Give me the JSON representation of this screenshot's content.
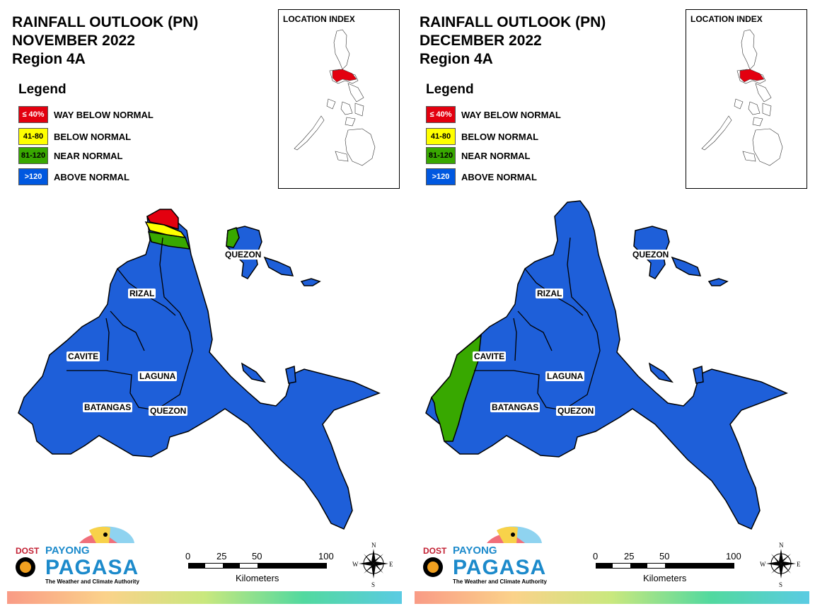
{
  "panels": [
    {
      "title_lines": [
        "RAINFALL OUTLOOK (PN)",
        "NOVEMBER 2022",
        "Region 4A"
      ],
      "legend": {
        "title": "Legend",
        "items": [
          {
            "code": "≤ 40%",
            "label": "WAY BELOW NORMAL",
            "color": "#e3000f",
            "text_color": "#ffffff"
          },
          {
            "code": "41-80",
            "label": "BELOW NORMAL",
            "color": "#ffff00",
            "text_color": "#000000"
          },
          {
            "code": "81-120",
            "label": "NEAR NORMAL",
            "color": "#38a800",
            "text_color": "#000000"
          },
          {
            "code": ">120",
            "label": "ABOVE NORMAL",
            "color": "#0058e0",
            "text_color": "#ffffff"
          }
        ]
      },
      "location_index": {
        "title": "LOCATION INDEX"
      },
      "provinces": [
        "RIZAL",
        "CAVITE",
        "LAGUNA",
        "BATANGAS",
        "QUEZON",
        "QUEZON"
      ],
      "special_zones": [
        "rizal-north-tip-way-below-normal",
        "rizal-north-tip-below-normal",
        "rizal-north-tip-near-normal",
        "polillo-near-normal"
      ],
      "scale": {
        "ticks": [
          "0",
          "25",
          "50",
          "100"
        ],
        "unit": "Kilometers"
      },
      "compass": {
        "n": "N",
        "s": "S",
        "e": "E",
        "w": "W"
      },
      "logo": {
        "dost": "DOST",
        "payong": "PAYONG",
        "pagasa": "PAGASA",
        "tagline": "The Weather and Climate Authority"
      }
    },
    {
      "title_lines": [
        "RAINFALL OUTLOOK (PN)",
        "DECEMBER 2022",
        "Region 4A"
      ],
      "legend": {
        "title": "Legend",
        "items": [
          {
            "code": "≤ 40%",
            "label": "WAY BELOW NORMAL",
            "color": "#e3000f",
            "text_color": "#ffffff"
          },
          {
            "code": "41-80",
            "label": "BELOW NORMAL",
            "color": "#ffff00",
            "text_color": "#000000"
          },
          {
            "code": "81-120",
            "label": "NEAR NORMAL",
            "color": "#38a800",
            "text_color": "#000000"
          },
          {
            "code": ">120",
            "label": "ABOVE NORMAL",
            "color": "#0058e0",
            "text_color": "#ffffff"
          }
        ]
      },
      "location_index": {
        "title": "LOCATION INDEX"
      },
      "provinces": [
        "RIZAL",
        "CAVITE",
        "LAGUNA",
        "BATANGAS",
        "QUEZON",
        "QUEZON"
      ],
      "special_zones": [
        "cavite-west-coast-near-normal"
      ],
      "scale": {
        "ticks": [
          "0",
          "25",
          "50",
          "100"
        ],
        "unit": "Kilometers"
      },
      "compass": {
        "n": "N",
        "s": "S",
        "e": "E",
        "w": "W"
      },
      "logo": {
        "dost": "DOST",
        "payong": "PAYONG",
        "pagasa": "PAGASA",
        "tagline": "The Weather and Climate Authority"
      }
    }
  ]
}
